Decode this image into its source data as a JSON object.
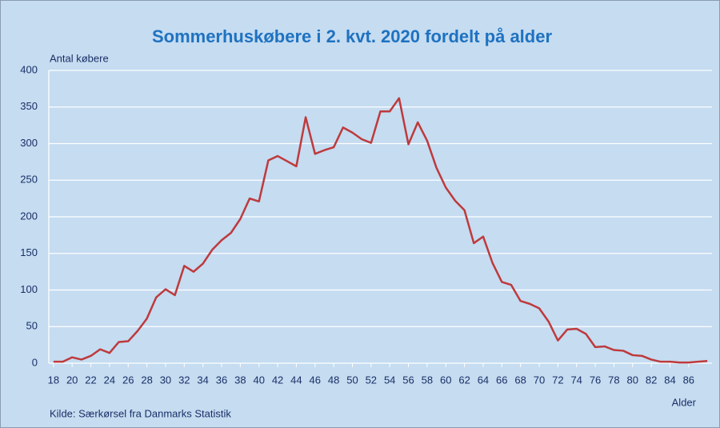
{
  "chart_data": {
    "type": "line",
    "title": "Sommerhuskøbere i 2. kvt. 2020 fordelt på alder",
    "y_label": "Antal købere",
    "x_label": "Alder",
    "source": "Kilde: Særkørsel fra Danmarks Statistik",
    "x": [
      18,
      19,
      20,
      21,
      22,
      23,
      24,
      25,
      26,
      27,
      28,
      29,
      30,
      31,
      32,
      33,
      34,
      35,
      36,
      37,
      38,
      39,
      40,
      41,
      42,
      43,
      44,
      45,
      46,
      47,
      48,
      49,
      50,
      51,
      52,
      53,
      54,
      55,
      56,
      57,
      58,
      59,
      60,
      61,
      62,
      63,
      64,
      65,
      66,
      67,
      68,
      69,
      70,
      71,
      72,
      73,
      74,
      75,
      76,
      77,
      78,
      79,
      80,
      81,
      82,
      83,
      84,
      85,
      86,
      87,
      88
    ],
    "series": [
      {
        "name": "Sommerhuskøbere",
        "color": "#be3a3c",
        "values": [
          2,
          2,
          8,
          5,
          10,
          19,
          14,
          29,
          30,
          44,
          61,
          90,
          101,
          93,
          133,
          125,
          136,
          155,
          168,
          178,
          197,
          225,
          221,
          277,
          283,
          276,
          269,
          336,
          286,
          291,
          295,
          322,
          315,
          306,
          301,
          344,
          344,
          362,
          299,
          329,
          304,
          267,
          240,
          222,
          209,
          164,
          173,
          137,
          111,
          107,
          85,
          81,
          75,
          57,
          31,
          46,
          47,
          40,
          22,
          23,
          18,
          17,
          11,
          10,
          5,
          2,
          2,
          1,
          1,
          2,
          3
        ]
      }
    ],
    "xlim": [
      17.5,
      88.5
    ],
    "xticks": [
      18,
      20,
      22,
      24,
      26,
      28,
      30,
      32,
      34,
      36,
      38,
      40,
      42,
      44,
      46,
      48,
      50,
      52,
      54,
      56,
      58,
      60,
      62,
      64,
      66,
      68,
      70,
      72,
      74,
      76,
      78,
      80,
      82,
      84,
      86
    ],
    "ylim": [
      0,
      400
    ],
    "yticks": [
      0,
      50,
      100,
      150,
      200,
      250,
      300,
      350,
      400
    ],
    "grid": true
  }
}
